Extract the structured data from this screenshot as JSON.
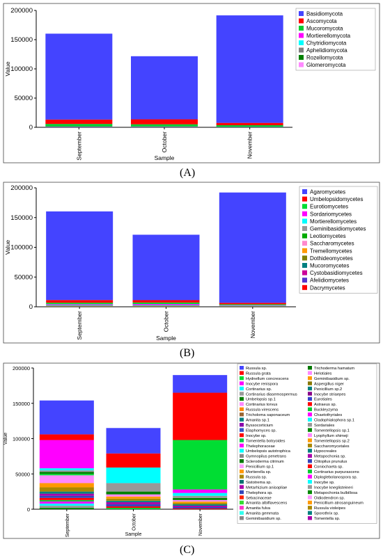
{
  "captions": {
    "A": "(A)",
    "B": "(B)",
    "C": "(C)"
  },
  "chart_data": [
    {
      "type": "bar",
      "stacked": true,
      "categories": [
        "September",
        "October",
        "November"
      ],
      "xlabel": "Sample",
      "ylabel": "Value",
      "ylim": [
        0,
        200000
      ],
      "yticks": [
        0,
        50000,
        100000,
        150000,
        200000
      ],
      "legend_position": "top-right",
      "series": [
        {
          "name": "Glomeromycota",
          "color": "#ff88ff",
          "values": [
            50,
            50,
            50
          ]
        },
        {
          "name": "Rozellomycota",
          "color": "#008000",
          "values": [
            200,
            300,
            100
          ]
        },
        {
          "name": "Aphelidiomycota",
          "color": "#808080",
          "values": [
            200,
            200,
            100
          ]
        },
        {
          "name": "Chytridiomycota",
          "color": "#00ffff",
          "values": [
            300,
            300,
            200
          ]
        },
        {
          "name": "Mortierellomycota",
          "color": "#ff00ff",
          "values": [
            500,
            500,
            300
          ]
        },
        {
          "name": "Mucoromycota",
          "color": "#00cc33",
          "values": [
            4500,
            3800,
            2800
          ]
        },
        {
          "name": "Ascomycota",
          "color": "#ff0000",
          "values": [
            7500,
            8500,
            4000
          ]
        },
        {
          "name": "Basidiomycota",
          "color": "#4444ff",
          "values": [
            147000,
            108000,
            184000
          ]
        }
      ]
    },
    {
      "type": "bar",
      "stacked": true,
      "categories": [
        "September",
        "October",
        "November"
      ],
      "xlabel": "Sample",
      "ylabel": "Value",
      "ylim": [
        0,
        200000
      ],
      "yticks": [
        0,
        50000,
        100000,
        150000,
        200000
      ],
      "legend_position": "top-right",
      "series": [
        {
          "name": "Dacrymycetes",
          "color": "#ff0000",
          "values": [
            50,
            50,
            50
          ]
        },
        {
          "name": "Afelidiomycetes",
          "color": "#5533cc",
          "values": [
            100,
            100,
            50
          ]
        },
        {
          "name": "Cystobasidiomycetes",
          "color": "#cc0099",
          "values": [
            100,
            100,
            50
          ]
        },
        {
          "name": "Mucoromycetes",
          "color": "#008080",
          "values": [
            200,
            200,
            100
          ]
        },
        {
          "name": "Dothideomycetes",
          "color": "#808000",
          "values": [
            300,
            300,
            200
          ]
        },
        {
          "name": "Tremellomycetes",
          "color": "#ff9900",
          "values": [
            300,
            300,
            200
          ]
        },
        {
          "name": "Saccharomycetes",
          "color": "#ff88cc",
          "values": [
            300,
            300,
            200
          ]
        },
        {
          "name": "Leotiomycetes",
          "color": "#00aa00",
          "values": [
            400,
            400,
            300
          ]
        },
        {
          "name": "Geminibasidiomycetes",
          "color": "#999999",
          "values": [
            500,
            500,
            300
          ]
        },
        {
          "name": "Mortierellomycetes",
          "color": "#00ffff",
          "values": [
            600,
            600,
            400
          ]
        },
        {
          "name": "Sordariomycetes",
          "color": "#ff00ff",
          "values": [
            1500,
            1800,
            800
          ]
        },
        {
          "name": "Eurotiomycetes",
          "color": "#00dd33",
          "values": [
            2500,
            2500,
            1500
          ]
        },
        {
          "name": "Umbelopsidomycetes",
          "color": "#ff0000",
          "values": [
            4500,
            4000,
            2500
          ]
        },
        {
          "name": "Agaromycetes",
          "color": "#4444ff",
          "values": [
            149000,
            110000,
            185500
          ]
        }
      ]
    },
    {
      "type": "bar",
      "stacked": true,
      "categories": [
        "September",
        "October",
        "November"
      ],
      "xlabel": "Sample",
      "ylabel": "Value",
      "ylim": [
        0,
        200000
      ],
      "yticks": [
        0,
        50000,
        100000,
        150000,
        200000
      ],
      "legend_position": "right",
      "legend_columns": [
        [
          {
            "name": "Russula sp.",
            "color": "#4444ff"
          },
          {
            "name": "Russula grata",
            "color": "#ff0000"
          },
          {
            "name": "Hydnellum concrescens",
            "color": "#00dd33"
          },
          {
            "name": "Inocybe renispora",
            "color": "#ff00ff"
          },
          {
            "name": "Cortinarius sp.",
            "color": "#00ffff"
          },
          {
            "name": "Cortinarius diasemospermus",
            "color": "#999999"
          },
          {
            "name": "Umbelopsis sp.1",
            "color": "#008000"
          },
          {
            "name": "Cortinarius torvus",
            "color": "#ff88ff"
          },
          {
            "name": "Russula virescens",
            "color": "#ff8800"
          },
          {
            "name": "Tricholoma saponaceum",
            "color": "#996633"
          },
          {
            "name": "Amanita sp.1",
            "color": "#008080"
          },
          {
            "name": "Byssocorticium",
            "color": "#8800aa"
          },
          {
            "name": "Elaphomyces sp.",
            "color": "#3355cc"
          },
          {
            "name": "Inocybe sp.",
            "color": "#ff0000"
          },
          {
            "name": "Tomentella botryoides",
            "color": "#00cc44"
          },
          {
            "name": "Thelephoraceae",
            "color": "#ff00ff"
          },
          {
            "name": "Umbelopsis autotrophica",
            "color": "#00ffff"
          },
          {
            "name": "Gymnopilus penetrans",
            "color": "#888888"
          },
          {
            "name": "Scleroderma citrinum",
            "color": "#007700"
          },
          {
            "name": "Penicillium sp.1",
            "color": "#ff99ff"
          },
          {
            "name": "Mortierella sp.",
            "color": "#ff9900"
          },
          {
            "name": "Russula sp.",
            "color": "#aa8800"
          },
          {
            "name": "Sistotrema sp.",
            "color": "#007070"
          },
          {
            "name": "Metarhizium anisopliae",
            "color": "#aa00aa"
          },
          {
            "name": "Thelephora sp.",
            "color": "#3344bb"
          },
          {
            "name": "Sebacinaceae",
            "color": "#ff2200"
          },
          {
            "name": "Amanita albiflavescens",
            "color": "#33dd33"
          },
          {
            "name": "Amanita fulva",
            "color": "#ff33cc"
          },
          {
            "name": "Amanita gemmata",
            "color": "#33ffee"
          },
          {
            "name": "Geminibasidium sp.",
            "color": "#888888"
          }
        ],
        [
          {
            "name": "Trichoderma hamatum",
            "color": "#007700"
          },
          {
            "name": "Helotiales",
            "color": "#ff88ff"
          },
          {
            "name": "Geminibasidium sp.",
            "color": "#ff9900"
          },
          {
            "name": "Aspergillus niger",
            "color": "#887700"
          },
          {
            "name": "Penicillium sp.2",
            "color": "#008080"
          },
          {
            "name": "Inocybe striaepes",
            "color": "#880088"
          },
          {
            "name": "Eurotiales",
            "color": "#3344cc"
          },
          {
            "name": "Astraeus sp.",
            "color": "#ff0000"
          },
          {
            "name": "Buckleyzyma",
            "color": "#00cc33"
          },
          {
            "name": "Chaetothyriales",
            "color": "#ff00ff"
          },
          {
            "name": "Cladophialophora sp.1",
            "color": "#00ffff"
          },
          {
            "name": "Sordariales",
            "color": "#999999"
          },
          {
            "name": "Tomentellopsis sp.1",
            "color": "#008800"
          },
          {
            "name": "Lyophyllum shimeji",
            "color": "#ff88ff"
          },
          {
            "name": "Tomentellopsis sp.2",
            "color": "#ff9900"
          },
          {
            "name": "Saccharomycetales",
            "color": "#aa8800"
          },
          {
            "name": "Hypocreales",
            "color": "#008080"
          },
          {
            "name": "Metapochonia sp.",
            "color": "#aa00aa"
          },
          {
            "name": "Clitopilus prunulus",
            "color": "#3344bb"
          },
          {
            "name": "Coniochaeta sp.",
            "color": "#ff0000"
          },
          {
            "name": "Cortinarius purpurascens",
            "color": "#00cc33"
          },
          {
            "name": "Diploglebolanospora sp.",
            "color": "#ff00ff"
          },
          {
            "name": "Inocybe sp.",
            "color": "#00ffff"
          },
          {
            "name": "Inocybe kneglisteineri",
            "color": "#999999"
          },
          {
            "name": "Metapochonia bulbillosa",
            "color": "#008800"
          },
          {
            "name": "Oidiodendron sp.",
            "color": "#ff99ff"
          },
          {
            "name": "Penicillium atrosanguineum",
            "color": "#ff9900"
          },
          {
            "name": "Russula violeipes",
            "color": "#aa8800"
          },
          {
            "name": "Sporothrix sp.",
            "color": "#008080"
          },
          {
            "name": "Tomentella sp.",
            "color": "#aa00aa"
          }
        ]
      ],
      "segments": [
        [
          {
            "value": 48000,
            "color": "#4444ff"
          },
          {
            "value": 8000,
            "color": "#ff0000"
          },
          {
            "value": 40000,
            "color": "#ff00ff"
          },
          {
            "value": 3000,
            "color": "#00ffff"
          },
          {
            "value": 2000,
            "color": "#999999"
          },
          {
            "value": 3000,
            "color": "#008000"
          },
          {
            "value": 2000,
            "color": "#00dd33"
          },
          {
            "value": 11000,
            "color": "#ff88ff"
          },
          {
            "value": 6000,
            "color": "#ff9900"
          },
          {
            "value": 6000,
            "color": "#aa8800"
          },
          {
            "value": 3000,
            "color": "#008080"
          },
          {
            "value": 3000,
            "color": "#aa00aa"
          },
          {
            "value": 3000,
            "color": "#3344bb"
          },
          {
            "value": 3000,
            "color": "#ff0000"
          },
          {
            "value": 2000,
            "color": "#00cc33"
          },
          {
            "value": 3000,
            "color": "#ff00ff"
          },
          {
            "value": 3000,
            "color": "#00ffff"
          },
          {
            "value": 3000,
            "color": "#999999"
          },
          {
            "value": 2000,
            "color": "#008800"
          }
        ],
        [
          {
            "value": 36000,
            "color": "#4444ff"
          },
          {
            "value": 20000,
            "color": "#ff0000"
          },
          {
            "value": 22000,
            "color": "#00ffff"
          },
          {
            "value": 12000,
            "color": "#999999"
          },
          {
            "value": 4000,
            "color": "#008000"
          },
          {
            "value": 3000,
            "color": "#ff88ff"
          },
          {
            "value": 3000,
            "color": "#ff9900"
          },
          {
            "value": 3000,
            "color": "#aa8800"
          },
          {
            "value": 2000,
            "color": "#008080"
          },
          {
            "value": 3000,
            "color": "#aa00aa"
          },
          {
            "value": 3000,
            "color": "#3344bb"
          },
          {
            "value": 2000,
            "color": "#ff0000"
          },
          {
            "value": 2000,
            "color": "#00cc33"
          }
        ],
        [
          {
            "value": 25000,
            "color": "#4444ff"
          },
          {
            "value": 67000,
            "color": "#ff0000"
          },
          {
            "value": 70000,
            "color": "#00dd33"
          },
          {
            "value": 5000,
            "color": "#ff00ff"
          },
          {
            "value": 4000,
            "color": "#00ffff"
          },
          {
            "value": 3000,
            "color": "#999999"
          },
          {
            "value": 3000,
            "color": "#008000"
          },
          {
            "value": 2000,
            "color": "#ff88ff"
          },
          {
            "value": 2000,
            "color": "#ff9900"
          },
          {
            "value": 2000,
            "color": "#aa8800"
          },
          {
            "value": 2000,
            "color": "#008080"
          },
          {
            "value": 2000,
            "color": "#aa00aa"
          },
          {
            "value": 2000,
            "color": "#3344bb"
          },
          {
            "value": 1000,
            "color": "#ff0000"
          }
        ]
      ]
    }
  ]
}
